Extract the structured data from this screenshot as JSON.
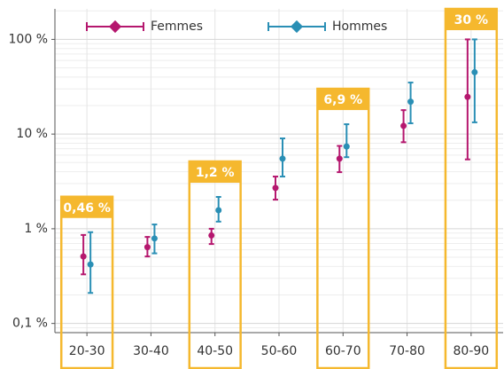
{
  "chart_data": {
    "type": "errorbar",
    "categories": [
      "20-30",
      "30-40",
      "40-50",
      "50-60",
      "60-70",
      "70-80",
      "80-90"
    ],
    "series": [
      {
        "name": "Femmes",
        "color": "#b5176e",
        "values": [
          0.51,
          0.64,
          0.85,
          2.7,
          5.5,
          12.2,
          24.7
        ],
        "low": [
          0.33,
          0.51,
          0.69,
          2.03,
          3.96,
          8.2,
          5.4
        ],
        "high": [
          0.86,
          0.82,
          1.0,
          3.56,
          7.5,
          17.9,
          100
        ]
      },
      {
        "name": "Hommes",
        "color": "#2a8fb5",
        "values": [
          0.42,
          0.79,
          1.57,
          5.5,
          7.4,
          22,
          45
        ],
        "low": [
          0.21,
          0.55,
          1.19,
          3.56,
          5.7,
          13,
          13.3
        ],
        "high": [
          0.92,
          1.11,
          2.17,
          9,
          12.7,
          35,
          100
        ]
      }
    ],
    "highlights": {
      "color": "#f5b82e",
      "values": [
        0.46,
        null,
        1.2,
        null,
        6.9,
        null,
        30
      ],
      "value_labels": [
        "0,46 %",
        null,
        "1,2 %",
        null,
        "6,9 %",
        null,
        "30 %"
      ]
    },
    "ylim": [
      0.08,
      210
    ],
    "yticks": [
      {
        "value": 0.1,
        "label": "0,1 %"
      },
      {
        "value": 1,
        "label": "1 %"
      },
      {
        "value": 10,
        "label": "10 %"
      },
      {
        "value": 100,
        "label": "100 %"
      }
    ],
    "log_scale": true,
    "grid": true,
    "legend": "top"
  }
}
